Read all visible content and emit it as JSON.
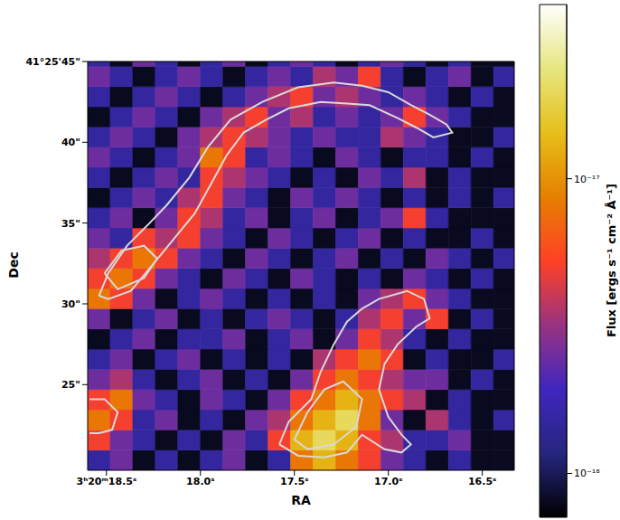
{
  "chart_data": {
    "type": "heatmap",
    "xlabel": "RA",
    "ylabel": "Dec",
    "xlim": [
      18.6,
      16.33
    ],
    "ylim": [
      19.7,
      45
    ],
    "xticks": [
      {
        "value": 18.5,
        "label": "3ʰ20ᵐ18.5ˢ"
      },
      {
        "value": 18,
        "label": "18.0ˢ"
      },
      {
        "value": 17.5,
        "label": "17.5ˢ"
      },
      {
        "value": 17,
        "label": "17.0ˢ"
      },
      {
        "value": 16.5,
        "label": "16.5ˢ"
      }
    ],
    "yticks": [
      {
        "value": 25,
        "label": "25\""
      },
      {
        "value": 30,
        "label": "30\""
      },
      {
        "value": 35,
        "label": "35\""
      },
      {
        "value": 40,
        "label": "40\""
      },
      {
        "value": 45,
        "label": "41°25'45\""
      }
    ],
    "x_edges": [
      18.6,
      18.48,
      18.36,
      18.24,
      18.12,
      18.0,
      17.88,
      17.76,
      17.64,
      17.52,
      17.4,
      17.28,
      17.16,
      17.04,
      16.92,
      16.8,
      16.68,
      16.56,
      16.44,
      16.33
    ],
    "y_edges": [
      19.7,
      20.95,
      22.2,
      23.45,
      24.7,
      25.95,
      27.2,
      28.45,
      29.7,
      30.95,
      32.2,
      33.45,
      34.7,
      35.95,
      37.2,
      38.45,
      39.7,
      40.95,
      42.2,
      43.45,
      44.7,
      45
    ],
    "cells": [
      [
        1.5e-18,
        2.5e-18,
        8e-19,
        1.5e-18,
        8e-19,
        1.5e-18,
        2.5e-18,
        8e-19,
        1.5e-18,
        8e-18,
        1.3e-17,
        8e-18,
        5e-18,
        2.5e-18,
        1.5e-18,
        8e-19,
        1.5e-18,
        8e-19,
        8e-19
      ],
      [
        5e-18,
        2.5e-18,
        1.5e-18,
        8e-19,
        1.5e-18,
        8e-19,
        2.5e-18,
        1.5e-18,
        5e-18,
        1.3e-17,
        2e-17,
        1.3e-17,
        5e-18,
        3.5e-18,
        1.5e-18,
        1.5e-18,
        2.5e-18,
        8e-19,
        8e-19
      ],
      [
        8e-18,
        5e-18,
        1.5e-18,
        2.5e-18,
        8e-19,
        1.5e-18,
        8e-19,
        2.5e-18,
        3.5e-18,
        8e-18,
        1.3e-17,
        2e-17,
        8e-18,
        2.5e-18,
        8e-19,
        3.5e-18,
        1.5e-18,
        8e-19,
        1.5e-18
      ],
      [
        5e-18,
        8e-18,
        2.5e-18,
        1.5e-18,
        8e-19,
        2.5e-18,
        1.5e-18,
        8e-19,
        2.5e-18,
        5e-18,
        8e-18,
        1.3e-17,
        8e-18,
        5e-18,
        3.5e-18,
        8e-19,
        1.5e-18,
        8e-19,
        8e-19
      ],
      [
        2.5e-18,
        3.5e-18,
        1.5e-18,
        8e-19,
        1.5e-18,
        2.5e-18,
        8e-19,
        1.5e-18,
        8e-19,
        2.5e-18,
        5e-18,
        8e-18,
        5e-18,
        3.5e-18,
        2.5e-18,
        2.5e-18,
        8e-19,
        1.5e-18,
        8e-19
      ],
      [
        1.5e-18,
        2.5e-18,
        8e-19,
        1.5e-18,
        2.5e-18,
        8e-19,
        1.5e-18,
        8e-19,
        1.5e-18,
        8e-19,
        3.5e-18,
        5e-18,
        8e-18,
        5e-18,
        8e-19,
        1.5e-18,
        8e-19,
        8e-19,
        1.5e-18
      ],
      [
        8e-19,
        1.5e-18,
        2.5e-18,
        8e-19,
        1.5e-18,
        1.5e-18,
        2.5e-18,
        8e-19,
        1.5e-18,
        2.5e-18,
        8e-19,
        2.5e-18,
        5e-18,
        3.5e-18,
        1.5e-18,
        8e-19,
        1.5e-18,
        8e-19,
        8e-19
      ],
      [
        2.5e-18,
        8e-19,
        1.5e-18,
        2.5e-18,
        8e-19,
        1.5e-18,
        8e-19,
        1.5e-18,
        2.5e-18,
        1.5e-18,
        8e-19,
        1.5e-18,
        3.5e-18,
        5e-18,
        2.5e-18,
        5e-18,
        8e-19,
        1.5e-18,
        8e-19
      ],
      [
        8e-18,
        5e-18,
        2.5e-18,
        8e-19,
        1.5e-18,
        2.5e-18,
        1.5e-18,
        8e-19,
        1.5e-18,
        8e-19,
        1.5e-18,
        8e-19,
        2.5e-18,
        3.5e-18,
        5e-18,
        2.5e-18,
        1.5e-18,
        8e-19,
        8e-19
      ],
      [
        5e-18,
        8e-18,
        5e-18,
        2.5e-18,
        1.5e-18,
        8e-19,
        2.5e-18,
        1.5e-18,
        8e-19,
        2.5e-18,
        1.5e-18,
        8e-19,
        1.5e-18,
        8e-19,
        2.5e-18,
        1.5e-18,
        8e-19,
        1.5e-18,
        8e-19
      ],
      [
        3.5e-18,
        5e-18,
        8e-18,
        5e-18,
        2.5e-18,
        1.5e-18,
        8e-19,
        2.5e-18,
        1.5e-18,
        8e-19,
        1.5e-18,
        2.5e-18,
        8e-19,
        1.5e-18,
        8e-19,
        2.5e-18,
        1.5e-18,
        8e-19,
        1.5e-18
      ],
      [
        2.5e-18,
        1.5e-18,
        5e-18,
        3.5e-18,
        5e-18,
        2.5e-18,
        1.5e-18,
        8e-19,
        2.5e-18,
        1.5e-18,
        8e-19,
        1.5e-18,
        2.5e-18,
        8e-19,
        1.5e-18,
        8e-19,
        8e-19,
        1.5e-18,
        8e-19
      ],
      [
        1.5e-18,
        2.5e-18,
        8e-19,
        2.5e-18,
        5e-18,
        3.5e-18,
        1.5e-18,
        2.5e-18,
        8e-19,
        1.5e-18,
        2.5e-18,
        8e-19,
        1.5e-18,
        2.5e-18,
        5e-18,
        1.5e-18,
        8e-19,
        8e-19,
        8e-19
      ],
      [
        8e-19,
        1.5e-18,
        2.5e-18,
        1.5e-18,
        3.5e-18,
        5e-18,
        2.5e-18,
        1.5e-18,
        8e-19,
        2.5e-18,
        1.5e-18,
        2.5e-18,
        1.5e-18,
        8e-19,
        1.5e-18,
        8e-19,
        1.5e-18,
        8e-19,
        1.5e-18
      ],
      [
        1.5e-18,
        8e-19,
        1.5e-18,
        2.5e-18,
        1.5e-18,
        5e-18,
        3.5e-18,
        2.5e-18,
        1.5e-18,
        8e-19,
        1.5e-18,
        8e-19,
        2.5e-18,
        1.5e-18,
        3.5e-18,
        8e-19,
        1.5e-18,
        8e-19,
        8e-19
      ],
      [
        2.5e-18,
        1.5e-18,
        8e-19,
        1.5e-18,
        2.5e-18,
        8e-18,
        5e-18,
        1.5e-18,
        2.5e-18,
        1.5e-18,
        8e-19,
        2.5e-18,
        1.5e-18,
        8e-19,
        1.5e-18,
        1.5e-18,
        8e-19,
        1.5e-18,
        8e-19
      ],
      [
        1.5e-18,
        2.5e-18,
        1.5e-18,
        8e-19,
        2.5e-18,
        3.5e-18,
        5e-18,
        3.5e-18,
        2.5e-18,
        1.5e-18,
        2.5e-18,
        1.5e-18,
        1.5e-18,
        3.5e-18,
        2.5e-18,
        1.5e-18,
        8e-19,
        8e-19,
        1.5e-18
      ],
      [
        8e-19,
        1.5e-18,
        2.5e-18,
        1.5e-18,
        8e-19,
        2.5e-18,
        3.5e-18,
        5e-18,
        2.5e-18,
        3.5e-18,
        1.5e-18,
        2.5e-18,
        1.5e-18,
        2.5e-18,
        5e-18,
        2.5e-18,
        1.5e-18,
        8e-19,
        8e-19
      ],
      [
        1.5e-18,
        8e-19,
        1.5e-18,
        2.5e-18,
        1.5e-18,
        8e-19,
        1.5e-18,
        2.5e-18,
        3.5e-18,
        5e-18,
        2.5e-18,
        3.5e-18,
        2.5e-18,
        1.5e-18,
        2.5e-18,
        1.5e-18,
        8e-19,
        1.5e-18,
        8e-19
      ],
      [
        2.5e-18,
        1.5e-18,
        8e-19,
        1.5e-18,
        2.5e-18,
        1.5e-18,
        8e-19,
        1.5e-18,
        2.5e-18,
        1.5e-18,
        3.5e-18,
        2.5e-18,
        5e-18,
        1.5e-18,
        8e-19,
        1.5e-18,
        2.5e-18,
        8e-19,
        1.5e-18
      ],
      [
        1.5e-18,
        8e-19,
        2.5e-18,
        1.5e-18,
        8e-19,
        1.5e-18,
        2.5e-18,
        8e-19,
        1.5e-18,
        2.5e-18,
        1.5e-18,
        8e-19,
        1.5e-18,
        2.5e-18,
        1.5e-18,
        8e-19,
        1.5e-18,
        8e-19,
        8e-19
      ]
    ],
    "colorbar": {
      "label": "Flux [ergs s⁻¹ cm⁻² Å⁻¹]",
      "range": [
        7.1e-19,
        3.9e-17
      ],
      "log": true,
      "ticks": [
        {
          "value": 1e-18,
          "label": "10⁻¹⁸"
        },
        {
          "value": 1e-17,
          "label": "10⁻¹⁷"
        }
      ]
    },
    "contours": {
      "color": "#d9d9d9",
      "lines": [
        [
          [
            18.54,
            30.5
          ],
          [
            18.49,
            31.9
          ],
          [
            18.39,
            33.6
          ],
          [
            18.27,
            35.0
          ],
          [
            18.18,
            36.1
          ],
          [
            18.06,
            37.8
          ],
          [
            17.96,
            39.7
          ],
          [
            17.84,
            41.4
          ],
          [
            17.67,
            42.5
          ],
          [
            17.48,
            43.4
          ],
          [
            17.29,
            43.7
          ],
          [
            17.14,
            43.5
          ],
          [
            17.0,
            43.1
          ],
          [
            16.88,
            42.3
          ],
          [
            16.78,
            41.7
          ],
          [
            16.69,
            41.1
          ],
          [
            16.66,
            40.6
          ],
          [
            16.76,
            40.3
          ],
          [
            16.85,
            40.9
          ],
          [
            16.95,
            41.5
          ],
          [
            17.1,
            42.3
          ],
          [
            17.22,
            42.4
          ],
          [
            17.36,
            42.5
          ],
          [
            17.53,
            42.1
          ],
          [
            17.65,
            41.4
          ],
          [
            17.77,
            40.6
          ],
          [
            17.86,
            39.2
          ],
          [
            17.94,
            37.5
          ],
          [
            18.03,
            35.6
          ],
          [
            18.15,
            33.9
          ],
          [
            18.27,
            32.2
          ],
          [
            18.37,
            30.8
          ],
          [
            18.49,
            30.3
          ],
          [
            18.54,
            30.5
          ]
        ],
        [
          [
            18.51,
            31.9
          ],
          [
            18.42,
            33.3
          ],
          [
            18.3,
            33.6
          ],
          [
            18.23,
            32.8
          ],
          [
            18.3,
            31.6
          ],
          [
            18.44,
            30.9
          ],
          [
            18.51,
            31.9
          ]
        ],
        [
          [
            17.58,
            21.3
          ],
          [
            17.53,
            22.7
          ],
          [
            17.41,
            24.1
          ],
          [
            17.36,
            25.8
          ],
          [
            17.29,
            27.5
          ],
          [
            17.22,
            28.9
          ],
          [
            17.14,
            29.7
          ],
          [
            17.05,
            30.3
          ],
          [
            16.9,
            30.8
          ],
          [
            16.81,
            30.3
          ],
          [
            16.78,
            29.1
          ],
          [
            16.85,
            28.6
          ],
          [
            16.95,
            27.5
          ],
          [
            17.02,
            26.3
          ],
          [
            17.05,
            24.7
          ],
          [
            17.0,
            23.0
          ],
          [
            16.93,
            21.9
          ],
          [
            16.88,
            21.3
          ],
          [
            16.93,
            20.8
          ],
          [
            17.02,
            21.0
          ],
          [
            17.14,
            21.9
          ],
          [
            17.22,
            20.8
          ],
          [
            17.34,
            20.5
          ],
          [
            17.48,
            20.6
          ],
          [
            17.58,
            21.3
          ]
        ],
        [
          [
            17.5,
            21.6
          ],
          [
            17.43,
            23.3
          ],
          [
            17.34,
            24.7
          ],
          [
            17.24,
            25.2
          ],
          [
            17.14,
            24.1
          ],
          [
            17.17,
            22.4
          ],
          [
            17.29,
            21.3
          ],
          [
            17.43,
            21.0
          ],
          [
            17.5,
            21.6
          ]
        ],
        [
          [
            18.59,
            24.1
          ],
          [
            18.51,
            24.1
          ],
          [
            18.44,
            23.3
          ],
          [
            18.47,
            22.2
          ],
          [
            18.54,
            22.0
          ],
          [
            18.59,
            22.0
          ]
        ]
      ]
    }
  }
}
